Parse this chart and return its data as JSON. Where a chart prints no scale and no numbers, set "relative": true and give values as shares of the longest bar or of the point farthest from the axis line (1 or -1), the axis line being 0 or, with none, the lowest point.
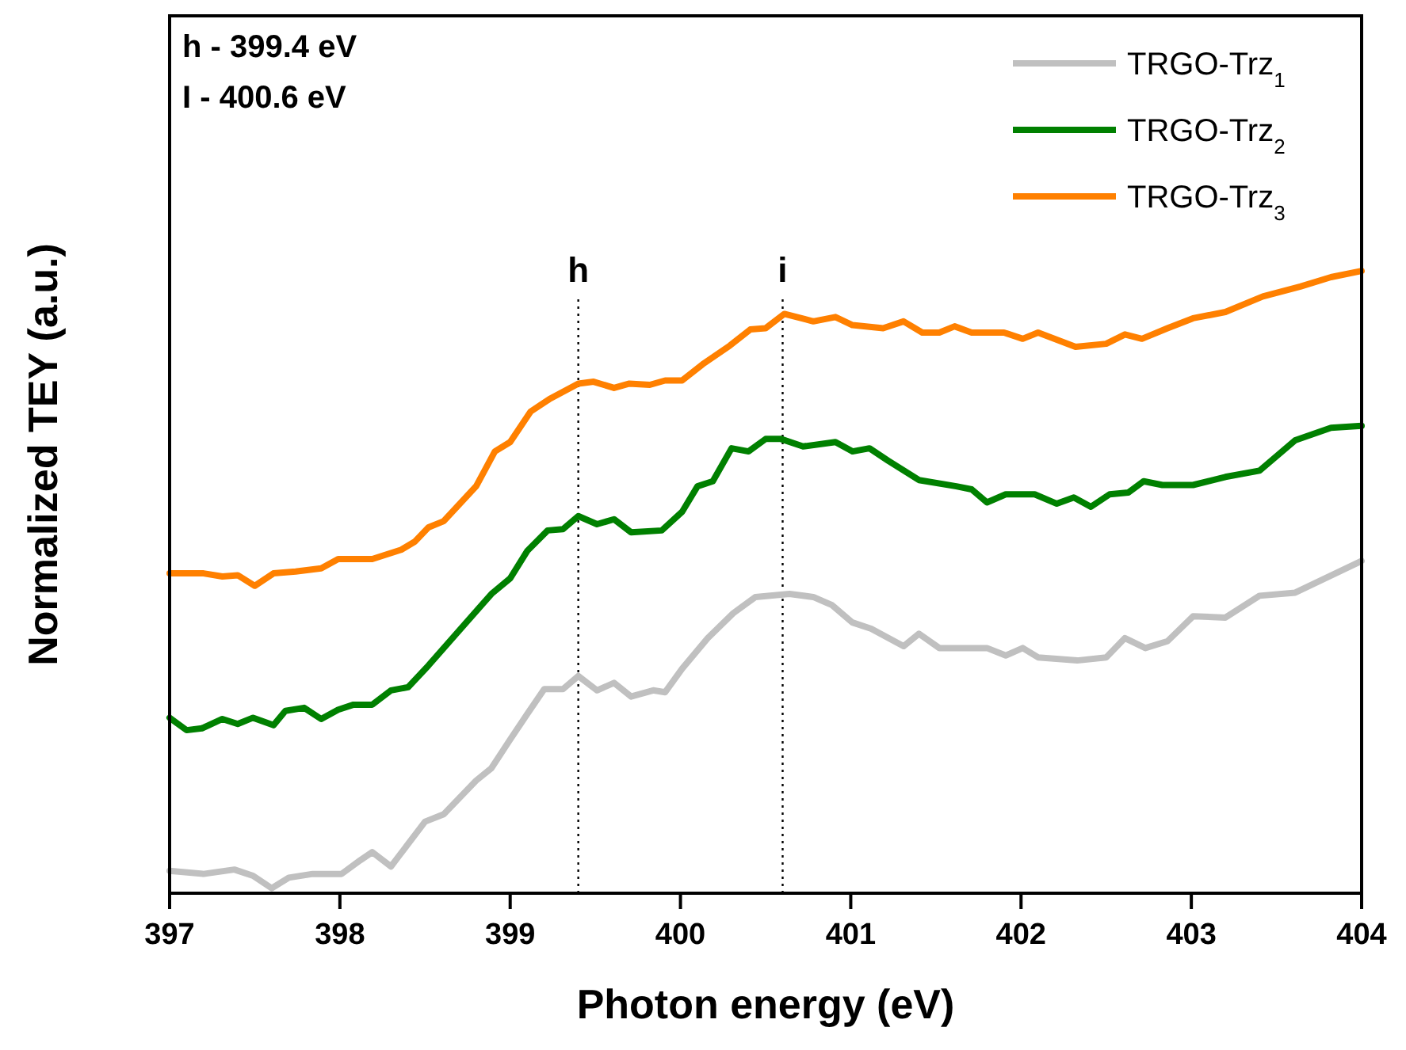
{
  "chart_data": {
    "type": "line",
    "relative": true,
    "xlabel": "Photon energy (eV)",
    "ylabel": "Normalized TEY (a.u.)",
    "xlim": [
      397,
      404
    ],
    "xticks": [
      397,
      398,
      399,
      400,
      401,
      402,
      403,
      404
    ],
    "legend": "top right",
    "line_style": "solid",
    "marker": "none",
    "grid": false,
    "annotations": [
      "h - 399.4 eV",
      "I - 400.6 eV"
    ],
    "ref_lines": [
      {
        "axis": "x",
        "value": 399.4,
        "label": "h",
        "color": "#000000",
        "line_style": "dotted"
      },
      {
        "axis": "x",
        "value": 400.6,
        "label": "i",
        "color": "#000000",
        "line_style": "dotted"
      }
    ],
    "series": [
      {
        "name": "TRGO-Trz$_{1}$",
        "color": "#c0c0c0",
        "x": [
          397.0,
          397.2,
          397.38,
          397.49,
          397.6,
          397.7,
          397.84,
          398.01,
          398.12,
          398.19,
          398.3,
          398.5,
          398.61,
          398.8,
          398.89,
          399.0,
          399.1,
          399.2,
          399.31,
          399.4,
          399.51,
          399.61,
          399.71,
          399.84,
          399.91,
          400.01,
          400.16,
          400.31,
          400.44,
          400.64,
          400.78,
          400.89,
          401.01,
          401.12,
          401.31,
          401.4,
          401.52,
          401.8,
          401.91,
          402.01,
          402.1,
          402.33,
          402.5,
          402.61,
          402.73,
          402.86,
          403.01,
          403.2,
          403.4,
          403.61,
          404.0
        ],
        "values": [
          0.036,
          0.031,
          0.038,
          0.028,
          0.008,
          0.025,
          0.031,
          0.031,
          0.053,
          0.066,
          0.043,
          0.115,
          0.127,
          0.181,
          0.201,
          0.247,
          0.288,
          0.328,
          0.328,
          0.349,
          0.326,
          0.338,
          0.316,
          0.326,
          0.323,
          0.361,
          0.41,
          0.45,
          0.476,
          0.481,
          0.476,
          0.463,
          0.435,
          0.425,
          0.397,
          0.417,
          0.394,
          0.394,
          0.382,
          0.394,
          0.379,
          0.374,
          0.379,
          0.41,
          0.394,
          0.405,
          0.445,
          0.443,
          0.478,
          0.483,
          0.534
        ]
      },
      {
        "name": "TRGO-Trz$_{2}$",
        "color": "#008000",
        "x": [
          397.0,
          397.1,
          397.19,
          397.31,
          397.4,
          397.49,
          397.61,
          397.68,
          397.79,
          397.89,
          397.99,
          398.08,
          398.19,
          398.3,
          398.4,
          398.52,
          398.7,
          398.89,
          399.0,
          399.1,
          399.22,
          399.31,
          399.4,
          399.51,
          399.61,
          399.71,
          399.89,
          400.01,
          400.1,
          400.19,
          400.3,
          400.4,
          400.5,
          400.59,
          400.72,
          400.91,
          401.01,
          401.11,
          401.22,
          401.4,
          401.62,
          401.71,
          401.8,
          401.91,
          402.08,
          402.21,
          402.31,
          402.41,
          402.52,
          402.63,
          402.72,
          402.83,
          403.01,
          403.2,
          403.4,
          403.61,
          403.82,
          404.0
        ],
        "values": [
          0.282,
          0.262,
          0.265,
          0.28,
          0.272,
          0.282,
          0.27,
          0.293,
          0.298,
          0.28,
          0.295,
          0.303,
          0.303,
          0.326,
          0.331,
          0.366,
          0.422,
          0.481,
          0.506,
          0.55,
          0.583,
          0.585,
          0.606,
          0.593,
          0.601,
          0.58,
          0.583,
          0.613,
          0.654,
          0.662,
          0.715,
          0.71,
          0.73,
          0.73,
          0.718,
          0.725,
          0.71,
          0.715,
          0.695,
          0.664,
          0.654,
          0.649,
          0.628,
          0.641,
          0.641,
          0.626,
          0.636,
          0.621,
          0.641,
          0.644,
          0.662,
          0.656,
          0.656,
          0.669,
          0.679,
          0.728,
          0.748,
          0.751
        ]
      },
      {
        "name": "TRGO-Trz$_{3}$",
        "color": "#ff8000",
        "x": [
          397.0,
          397.2,
          397.31,
          397.4,
          397.5,
          397.61,
          397.74,
          397.89,
          397.99,
          398.19,
          398.36,
          398.44,
          398.52,
          398.61,
          398.8,
          398.91,
          399.0,
          399.12,
          399.23,
          399.4,
          399.49,
          399.61,
          399.7,
          399.82,
          399.91,
          400.01,
          400.13,
          400.29,
          400.41,
          400.5,
          400.61,
          400.78,
          400.91,
          401.01,
          401.19,
          401.31,
          401.42,
          401.52,
          401.61,
          401.71,
          401.9,
          402.01,
          402.1,
          402.32,
          402.5,
          402.61,
          402.71,
          402.86,
          403.01,
          403.2,
          403.42,
          403.64,
          403.82,
          404.0
        ],
        "values": [
          0.514,
          0.514,
          0.509,
          0.511,
          0.494,
          0.514,
          0.517,
          0.522,
          0.537,
          0.537,
          0.552,
          0.565,
          0.588,
          0.598,
          0.654,
          0.71,
          0.725,
          0.774,
          0.794,
          0.819,
          0.822,
          0.812,
          0.819,
          0.817,
          0.824,
          0.824,
          0.85,
          0.88,
          0.906,
          0.908,
          0.931,
          0.919,
          0.926,
          0.913,
          0.908,
          0.919,
          0.901,
          0.901,
          0.911,
          0.901,
          0.901,
          0.891,
          0.901,
          0.878,
          0.883,
          0.898,
          0.891,
          0.908,
          0.924,
          0.934,
          0.959,
          0.975,
          0.99,
          1.0
        ]
      }
    ]
  }
}
